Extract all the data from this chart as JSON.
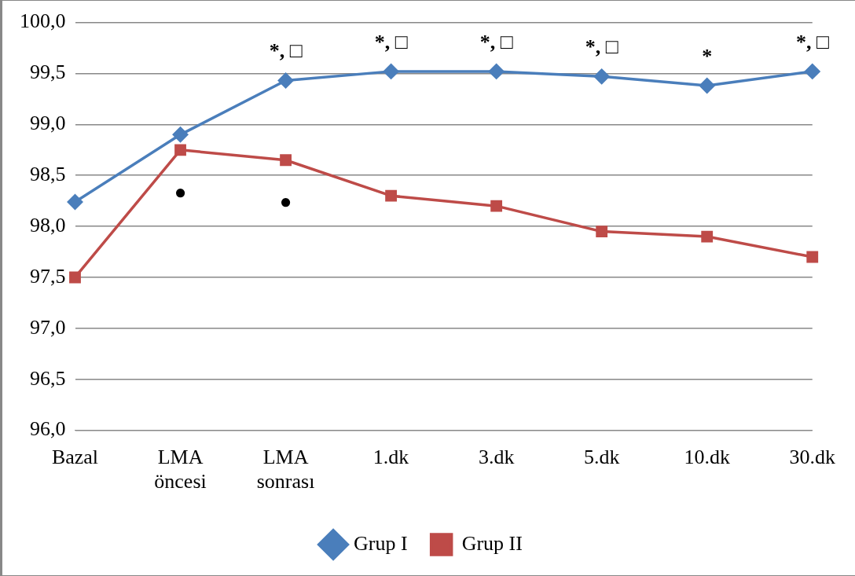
{
  "chart_data": {
    "type": "line",
    "categories": [
      "Bazal",
      "LMA öncesi",
      "LMA sonrası",
      "1.dk",
      "3.dk",
      "5.dk",
      "10.dk",
      "30.dk"
    ],
    "series": [
      {
        "name": "Grup I",
        "color": "#4a7ebb",
        "marker": "diamond",
        "values": [
          98.24,
          98.9,
          99.43,
          99.52,
          99.52,
          99.47,
          99.38,
          99.52
        ]
      },
      {
        "name": "Grup II",
        "color": "#be4b48",
        "marker": "square",
        "values": [
          97.5,
          98.75,
          98.65,
          98.3,
          98.2,
          97.95,
          97.9,
          97.7
        ]
      }
    ],
    "ylim": [
      96,
      100
    ],
    "yticks": [
      {
        "value": 96,
        "label": "96,0"
      },
      {
        "value": 96.5,
        "label": "96,5"
      },
      {
        "value": 97,
        "label": "97,0"
      },
      {
        "value": 97.5,
        "label": "97,5"
      },
      {
        "value": 98,
        "label": "98,0"
      },
      {
        "value": 98.5,
        "label": "98,5"
      },
      {
        "value": 99,
        "label": "99,0"
      },
      {
        "value": 99.5,
        "label": "99,5"
      },
      {
        "value": 100,
        "label": "100,0"
      }
    ],
    "grid": "y",
    "legend": "bottom",
    "line_style": "solid",
    "annotations": [
      {
        "text": "*, □",
        "x": "LMA sonrası",
        "y": 99.43
      },
      {
        "text": "*, □",
        "x": "1.dk",
        "y": 99.52
      },
      {
        "text": "*, □",
        "x": "3.dk",
        "y": 99.52
      },
      {
        "text": "*, □",
        "x": "5.dk",
        "y": 99.47
      },
      {
        "text": "*",
        "x": "10.dk",
        "y": 99.38
      },
      {
        "text": "*, □",
        "x": "30.dk",
        "y": 99.52
      },
      {
        "text": "●",
        "x": "LMA öncesi",
        "y": 98.75
      },
      {
        "text": "●",
        "x": "LMA sonrası",
        "y": 98.65
      }
    ]
  }
}
